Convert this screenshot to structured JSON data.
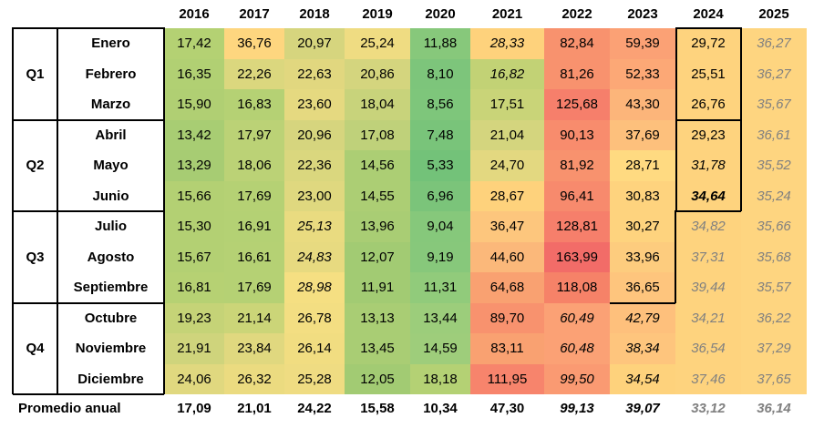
{
  "chart_data": {
    "type": "table",
    "years": [
      "2016",
      "2017",
      "2018",
      "2019",
      "2020",
      "2021",
      "2022",
      "2023",
      "2024",
      "2025"
    ],
    "quarters": [
      {
        "label": "Q1",
        "months": [
          "Enero",
          "Febrero",
          "Marzo"
        ]
      },
      {
        "label": "Q2",
        "months": [
          "Abril",
          "Mayo",
          "Junio"
        ]
      },
      {
        "label": "Q3",
        "months": [
          "Julio",
          "Agosto",
          "Septiembre"
        ]
      },
      {
        "label": "Q4",
        "months": [
          "Octubre",
          "Noviembre",
          "Diciembre"
        ]
      }
    ],
    "rows": [
      [
        "17,42",
        "36,76",
        "20,97",
        "25,24",
        "11,88",
        "28,33",
        "82,84",
        "59,39",
        "29,72",
        "36,27"
      ],
      [
        "16,35",
        "22,26",
        "22,63",
        "20,86",
        "8,10",
        "16,82",
        "81,26",
        "52,33",
        "25,51",
        "36,27"
      ],
      [
        "15,90",
        "16,83",
        "23,60",
        "18,04",
        "8,56",
        "17,51",
        "125,68",
        "43,30",
        "26,76",
        "35,67"
      ],
      [
        "13,42",
        "17,97",
        "20,96",
        "17,08",
        "7,48",
        "21,04",
        "90,13",
        "37,69",
        "29,23",
        "36,61"
      ],
      [
        "13,29",
        "18,06",
        "22,36",
        "14,56",
        "5,33",
        "24,70",
        "81,92",
        "28,71",
        "31,78",
        "35,52"
      ],
      [
        "15,66",
        "17,69",
        "23,00",
        "14,55",
        "6,96",
        "28,67",
        "96,41",
        "30,83",
        "34,64",
        "35,24"
      ],
      [
        "15,30",
        "16,91",
        "25,13",
        "13,96",
        "9,04",
        "36,47",
        "128,81",
        "30,27",
        "34,82",
        "35,66"
      ],
      [
        "15,67",
        "16,61",
        "24,83",
        "12,07",
        "9,19",
        "44,60",
        "163,99",
        "33,96",
        "37,31",
        "35,68"
      ],
      [
        "16,81",
        "17,69",
        "28,98",
        "11,91",
        "11,31",
        "64,68",
        "118,08",
        "36,65",
        "39,44",
        "35,57"
      ],
      [
        "19,23",
        "21,14",
        "26,78",
        "13,13",
        "13,44",
        "89,70",
        "60,49",
        "42,79",
        "34,21",
        "36,22"
      ],
      [
        "21,91",
        "23,84",
        "26,14",
        "13,45",
        "14,59",
        "83,11",
        "60,48",
        "38,34",
        "36,54",
        "37,29"
      ],
      [
        "24,06",
        "26,32",
        "25,28",
        "12,05",
        "18,18",
        "111,95",
        "99,50",
        "34,54",
        "37,46",
        "37,65"
      ]
    ],
    "cell_styles": [
      [
        "",
        "",
        "",
        "",
        "",
        "i",
        "",
        "",
        "",
        "ig"
      ],
      [
        "",
        "",
        "",
        "",
        "",
        "i",
        "",
        "",
        "",
        "ig"
      ],
      [
        "",
        "",
        "",
        "",
        "",
        "",
        "",
        "",
        "",
        "ig"
      ],
      [
        "",
        "",
        "",
        "",
        "",
        "",
        "",
        "",
        "",
        "ig"
      ],
      [
        "",
        "",
        "",
        "",
        "",
        "",
        "",
        "",
        "i",
        "ig"
      ],
      [
        "",
        "",
        "",
        "",
        "",
        "",
        "",
        "",
        "ib",
        "ig"
      ],
      [
        "",
        "",
        "i",
        "",
        "",
        "",
        "",
        "",
        "ig",
        "ig"
      ],
      [
        "",
        "",
        "i",
        "",
        "",
        "",
        "",
        "",
        "ig",
        "ig"
      ],
      [
        "",
        "",
        "i",
        "",
        "",
        "",
        "",
        "",
        "ig",
        "ig"
      ],
      [
        "",
        "",
        "",
        "",
        "",
        "",
        "i",
        "i",
        "ig",
        "ig"
      ],
      [
        "",
        "",
        "",
        "",
        "",
        "",
        "i",
        "i",
        "ig",
        "ig"
      ],
      [
        "",
        "",
        "",
        "",
        "",
        "",
        "i",
        "i",
        "ig",
        "ig"
      ]
    ],
    "cell_colors": [
      [
        "#b4d173",
        "#fed67f",
        "#d6d57e",
        "#efdc82",
        "#87c87b",
        "#fed27c",
        "#f8926e",
        "#fba175",
        "#fed37e",
        "#fed580"
      ],
      [
        "#b1d073",
        "#dbd77e",
        "#e1d77f",
        "#d4d57e",
        "#7dc57b",
        "#c2d275",
        "#f8926e",
        "#fca876",
        "#fed37e",
        "#fed580"
      ],
      [
        "#b0cf73",
        "#b5d174",
        "#e5d980",
        "#c8d37b",
        "#7ec67b",
        "#c9d478",
        "#f67f6b",
        "#fcb57a",
        "#fed37e",
        "#fed580"
      ],
      [
        "#a8cd73",
        "#bbd276",
        "#d6d57e",
        "#bfd17a",
        "#79c47a",
        "#d4d57e",
        "#f88c6d",
        "#fdc07c",
        "#fed37e",
        "#fed580"
      ],
      [
        "#a7cc73",
        "#bbd276",
        "#dad77e",
        "#acce74",
        "#73c279",
        "#e3d880",
        "#f8926e",
        "#ffda81",
        "#fed37e",
        "#fed580"
      ],
      [
        "#b3d073",
        "#b5d174",
        "#dfd87f",
        "#acce74",
        "#7bc47a",
        "#fed27c",
        "#f78a6d",
        "#fed37e",
        "#fed37e",
        "#fed580"
      ],
      [
        "#b3d073",
        "#b4d174",
        "#e9db80",
        "#a9cd74",
        "#86c87b",
        "#fdc67d",
        "#f67f6b",
        "#fed37e",
        "#fed37e",
        "#fed580"
      ],
      [
        "#b3d073",
        "#b5d174",
        "#e7da80",
        "#a2cb73",
        "#87c87b",
        "#fbb87a",
        "#f26c68",
        "#fdcc7e",
        "#fed37e",
        "#fed580"
      ],
      [
        "#b6d173",
        "#b5d174",
        "#f5df82",
        "#a2cb73",
        "#91cb7b",
        "#f9a171",
        "#f68268",
        "#fec57d",
        "#fed37e",
        "#fed580"
      ],
      [
        "#c5d377",
        "#cbd578",
        "#f3de82",
        "#a9cd74",
        "#9ccd7b",
        "#f8926e",
        "#fba175",
        "#fec07c",
        "#fed37e",
        "#fed580"
      ],
      [
        "#cfd47c",
        "#e0d87f",
        "#f1dd81",
        "#a9cd74",
        "#9ecd7b",
        "#f9a171",
        "#fba175",
        "#fec57d",
        "#fed37e",
        "#fed580"
      ],
      [
        "#e0d87f",
        "#ebdb80",
        "#efdc82",
        "#a2cb73",
        "#b4d174",
        "#f7846c",
        "#fa9a72",
        "#fed27c",
        "#fed37e",
        "#fed580"
      ]
    ],
    "average": {
      "label": "Promedio anual",
      "values": [
        "17,09",
        "21,01",
        "24,22",
        "15,58",
        "10,34",
        "47,30",
        "99,13",
        "39,07",
        "33,12",
        "36,14"
      ],
      "styles": [
        "",
        "",
        "",
        "",
        "",
        "",
        "i",
        "i",
        "ig",
        "ig"
      ]
    }
  }
}
